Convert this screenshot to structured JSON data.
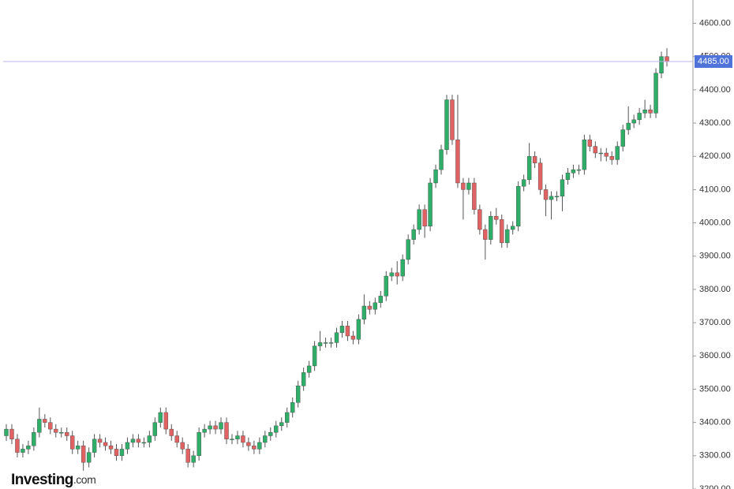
{
  "chart_data": {
    "type": "candlestick",
    "ylim": [
      3200,
      4670
    ],
    "yticks": [
      {
        "value": 3200,
        "label": "3200.00"
      },
      {
        "value": 3300,
        "label": "3300.00"
      },
      {
        "value": 3400,
        "label": "3400.00"
      },
      {
        "value": 3500,
        "label": "3500.00"
      },
      {
        "value": 3600,
        "label": "3600.00"
      },
      {
        "value": 3700,
        "label": "3700.00"
      },
      {
        "value": 3800,
        "label": "3800.00"
      },
      {
        "value": 3900,
        "label": "3900.00"
      },
      {
        "value": 4000,
        "label": "4000.00"
      },
      {
        "value": 4100,
        "label": "4100.00"
      },
      {
        "value": 4200,
        "label": "4200.00"
      },
      {
        "value": 4300,
        "label": "4300.00"
      },
      {
        "value": 4400,
        "label": "4400.00"
      },
      {
        "value": 4500,
        "label": "4500.00"
      },
      {
        "value": 4600,
        "label": "4600.00"
      }
    ],
    "last_price": {
      "value": 4485,
      "label": "4485.00"
    },
    "up_color": "#2fae6a",
    "down_color": "#e06262",
    "price_line_color": "#b8b4ea",
    "price_label_color": "#4f73d9",
    "watermark": {
      "brand": "Investing",
      "suffix": ".com"
    },
    "open": [
      3360,
      3380,
      3350,
      3310,
      3320,
      3330,
      3370,
      3410,
      3400,
      3380,
      3370,
      3370,
      3360,
      3320,
      3330,
      3280,
      3310,
      3350,
      3340,
      3330,
      3320,
      3300,
      3320,
      3340,
      3350,
      3340,
      3340,
      3360,
      3400,
      3430,
      3380,
      3360,
      3340,
      3320,
      3280,
      3300,
      3370,
      3380,
      3390,
      3380,
      3400,
      3350,
      3350,
      3360,
      3340,
      3330,
      3320,
      3340,
      3360,
      3370,
      3390,
      3400,
      3430,
      3460,
      3510,
      3550,
      3570,
      3630,
      3640,
      3640,
      3640,
      3670,
      3690,
      3660,
      3650,
      3710,
      3750,
      3740,
      3760,
      3780,
      3840,
      3850,
      3840,
      3890,
      3950,
      3980,
      4040,
      3990,
      4120,
      4160,
      4220,
      4370,
      4250,
      4120,
      4100,
      4120,
      4040,
      3980,
      3950,
      4020,
      4010,
      3940,
      3980,
      3990,
      4110,
      4130,
      4200,
      4180,
      4100,
      4070,
      4080,
      4080,
      4130,
      4150,
      4160,
      4160,
      4250,
      4230,
      4210,
      4210,
      4200,
      4190,
      4230,
      4280,
      4300,
      4310,
      4330,
      4340,
      4330,
      4450,
      4500
    ],
    "high": [
      3395,
      3395,
      3365,
      3335,
      3345,
      3385,
      3445,
      3425,
      3415,
      3395,
      3385,
      3385,
      3375,
      3345,
      3345,
      3325,
      3365,
      3365,
      3355,
      3345,
      3335,
      3335,
      3355,
      3365,
      3365,
      3355,
      3375,
      3415,
      3445,
      3445,
      3395,
      3375,
      3355,
      3335,
      3315,
      3385,
      3395,
      3405,
      3405,
      3415,
      3415,
      3365,
      3375,
      3375,
      3355,
      3345,
      3355,
      3375,
      3385,
      3405,
      3415,
      3445,
      3475,
      3525,
      3565,
      3585,
      3645,
      3675,
      3655,
      3655,
      3685,
      3705,
      3705,
      3675,
      3725,
      3785,
      3765,
      3775,
      3795,
      3855,
      3865,
      3885,
      3905,
      3965,
      3995,
      4055,
      4055,
      4135,
      4175,
      4235,
      4385,
      4385,
      4385,
      4135,
      4135,
      4135,
      4055,
      3995,
      4035,
      4045,
      4025,
      3995,
      4005,
      4125,
      4145,
      4240,
      4215,
      4195,
      4115,
      4095,
      4095,
      4145,
      4165,
      4175,
      4175,
      4265,
      4265,
      4245,
      4225,
      4225,
      4215,
      4245,
      4295,
      4350,
      4325,
      4345,
      4370,
      4355,
      4465,
      4515,
      4525
    ],
    "low": [
      3345,
      3335,
      3295,
      3295,
      3305,
      3315,
      3355,
      3385,
      3365,
      3355,
      3355,
      3345,
      3305,
      3305,
      3255,
      3265,
      3295,
      3325,
      3315,
      3305,
      3285,
      3285,
      3305,
      3325,
      3325,
      3325,
      3325,
      3345,
      3385,
      3365,
      3345,
      3325,
      3305,
      3265,
      3265,
      3285,
      3355,
      3365,
      3365,
      3365,
      3335,
      3335,
      3335,
      3325,
      3315,
      3305,
      3305,
      3325,
      3345,
      3355,
      3375,
      3385,
      3415,
      3445,
      3495,
      3535,
      3555,
      3615,
      3625,
      3625,
      3625,
      3655,
      3645,
      3635,
      3635,
      3695,
      3725,
      3725,
      3745,
      3765,
      3825,
      3815,
      3825,
      3875,
      3935,
      3965,
      3955,
      3975,
      4105,
      4145,
      4205,
      4235,
      4105,
      4010,
      4085,
      4025,
      3965,
      3890,
      3935,
      3995,
      3925,
      3925,
      3965,
      3975,
      4095,
      4115,
      4165,
      4085,
      4020,
      4010,
      4065,
      4035,
      4115,
      4135,
      4145,
      4145,
      4215,
      4195,
      4185,
      4185,
      4175,
      4175,
      4215,
      4265,
      4285,
      4295,
      4315,
      4315,
      4315,
      4435,
      4470
    ],
    "close": [
      3380,
      3350,
      3310,
      3320,
      3330,
      3370,
      3410,
      3400,
      3380,
      3370,
      3370,
      3360,
      3320,
      3330,
      3280,
      3310,
      3350,
      3340,
      3330,
      3320,
      3300,
      3320,
      3340,
      3350,
      3340,
      3340,
      3360,
      3400,
      3430,
      3380,
      3360,
      3340,
      3320,
      3280,
      3300,
      3370,
      3380,
      3390,
      3380,
      3400,
      3350,
      3350,
      3360,
      3340,
      3330,
      3320,
      3340,
      3360,
      3370,
      3390,
      3400,
      3430,
      3460,
      3510,
      3550,
      3570,
      3630,
      3640,
      3640,
      3640,
      3670,
      3690,
      3660,
      3650,
      3710,
      3750,
      3740,
      3760,
      3780,
      3840,
      3850,
      3840,
      3890,
      3950,
      3980,
      4040,
      3990,
      4120,
      4160,
      4220,
      4370,
      4250,
      4120,
      4100,
      4120,
      4040,
      3980,
      3950,
      4020,
      4010,
      3940,
      3980,
      3990,
      4110,
      4130,
      4200,
      4180,
      4100,
      4070,
      4080,
      4080,
      4130,
      4150,
      4160,
      4160,
      4250,
      4230,
      4210,
      4210,
      4200,
      4190,
      4230,
      4280,
      4300,
      4310,
      4330,
      4340,
      4330,
      4450,
      4500,
      4485
    ]
  }
}
